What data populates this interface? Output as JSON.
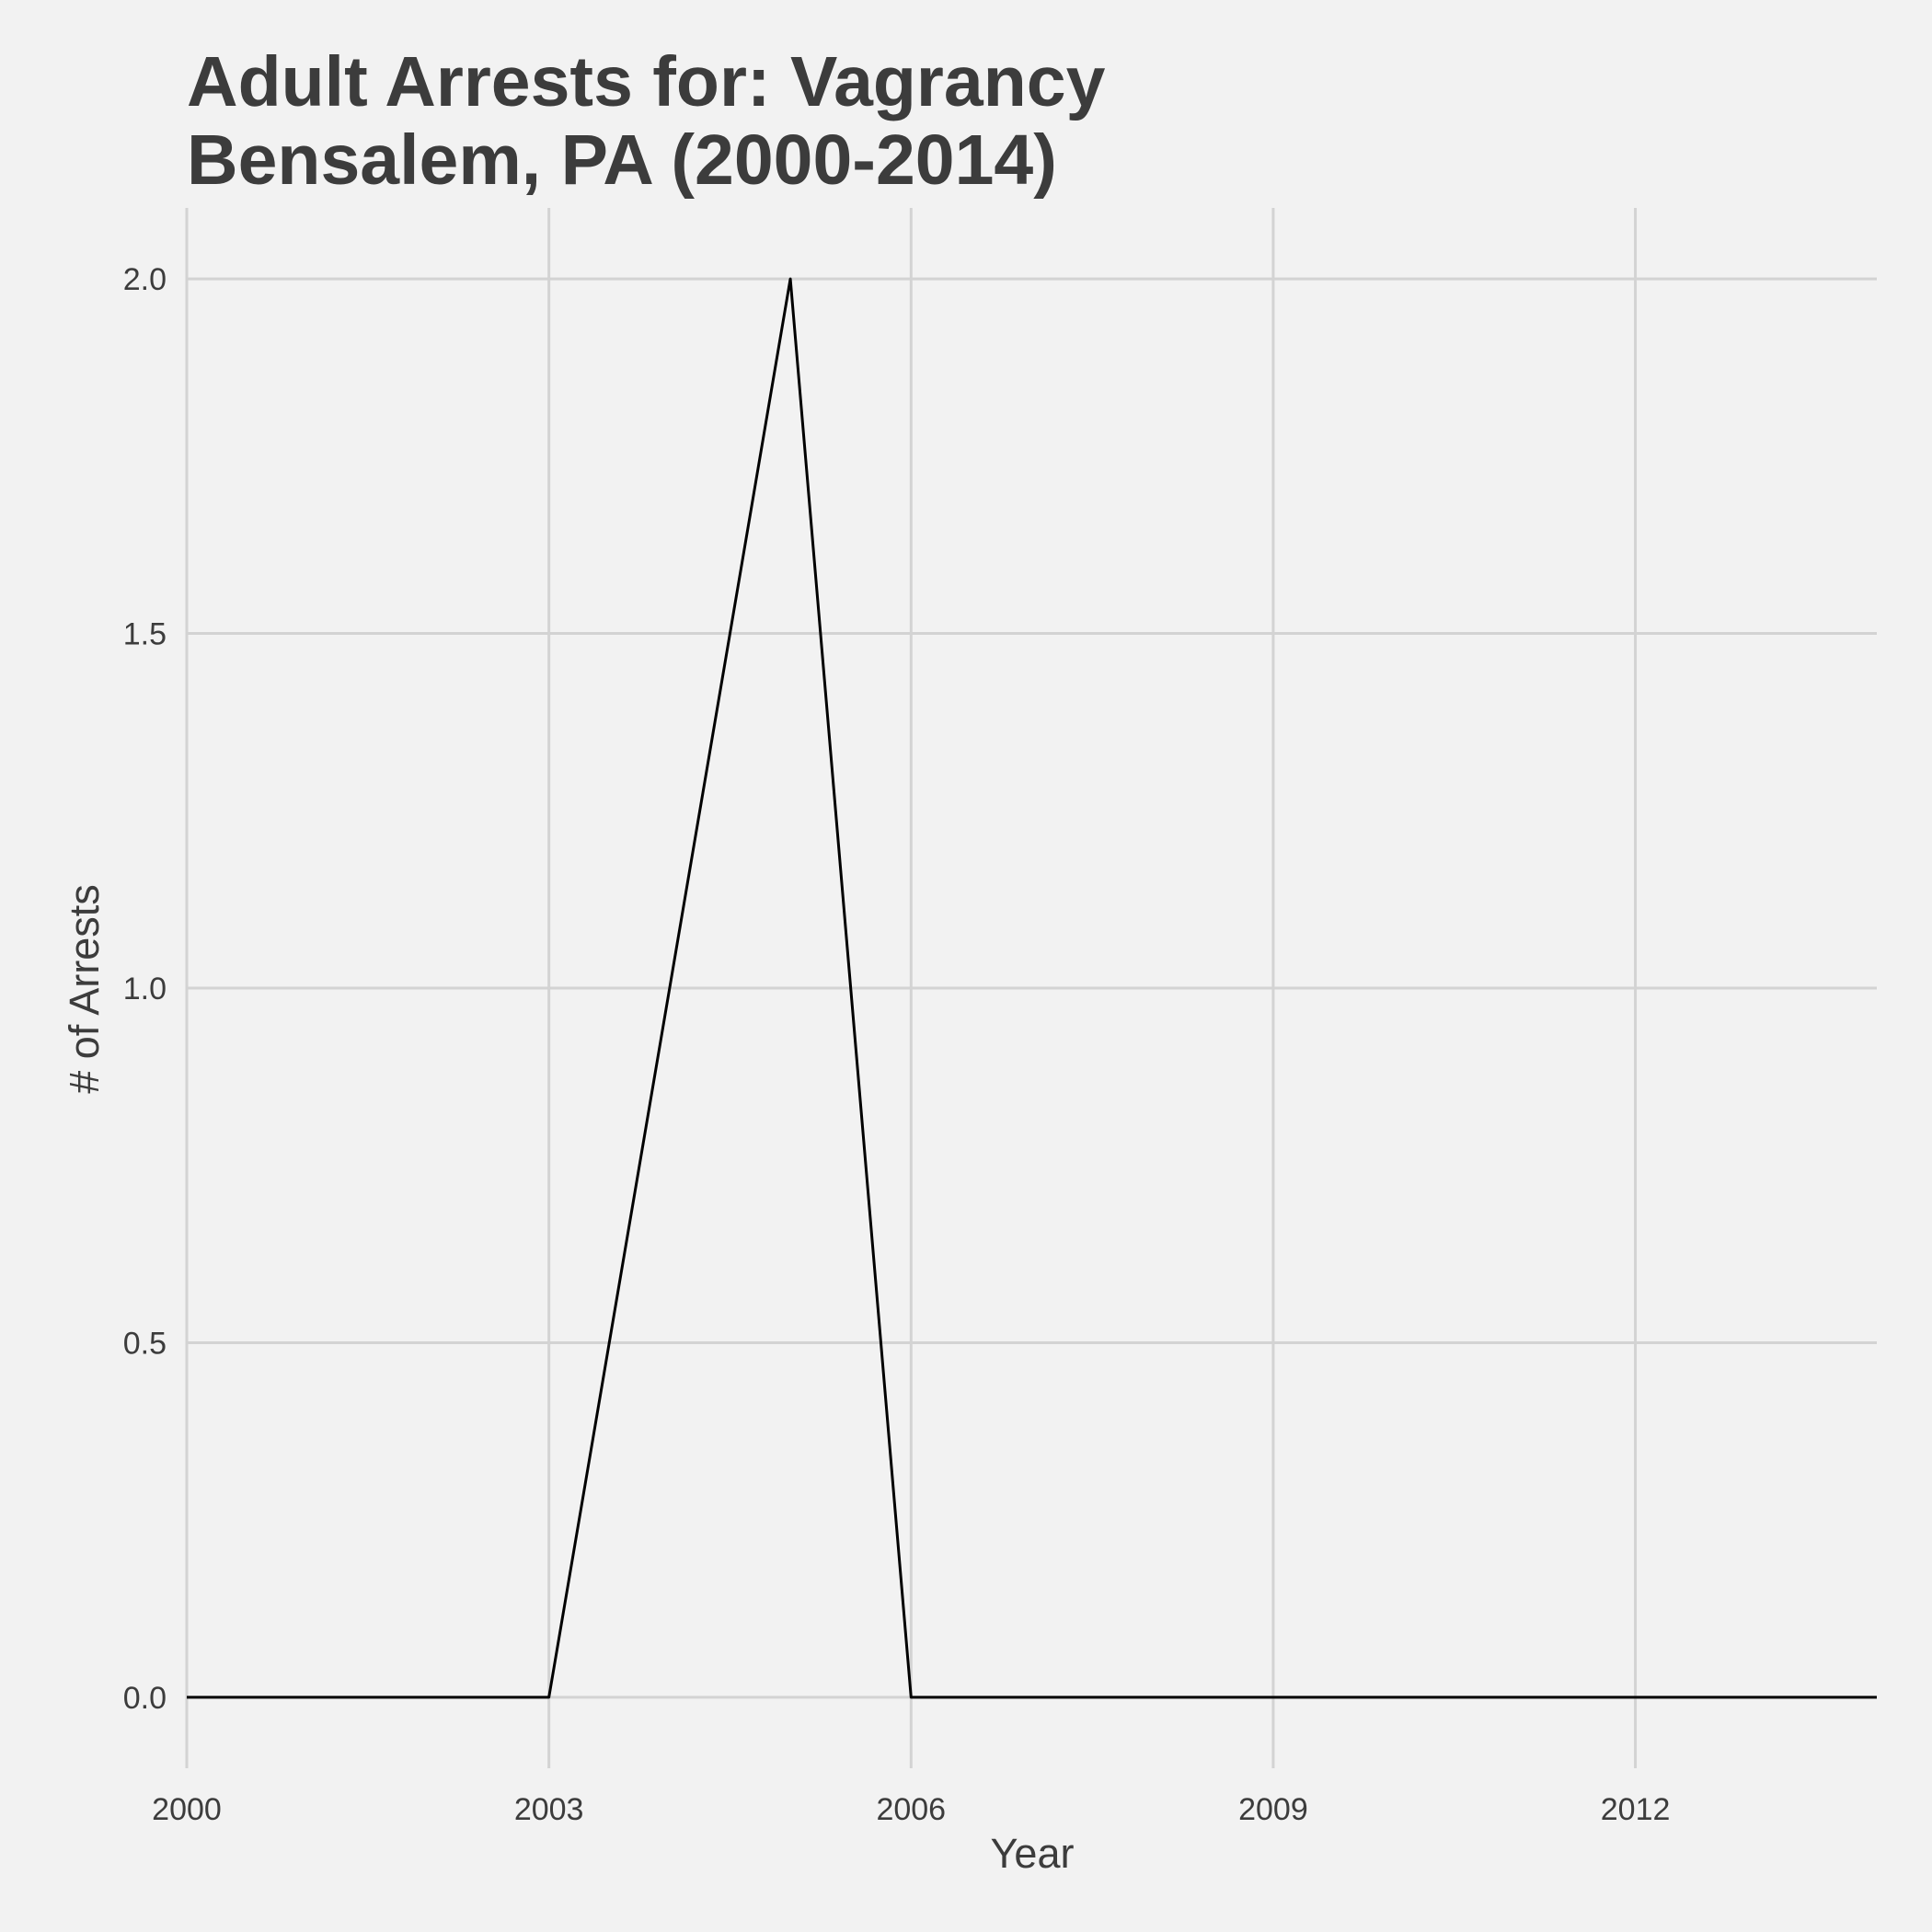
{
  "chart_data": {
    "type": "line",
    "title_lines": [
      "Adult Arrests for: Vagrancy",
      "Bensalem, PA (2000-2014)"
    ],
    "xlabel": "Year",
    "ylabel": "# of Arrests",
    "x": [
      2000,
      2001,
      2002,
      2003,
      2004,
      2005,
      2006,
      2007,
      2008,
      2009,
      2010,
      2011,
      2012,
      2013,
      2014
    ],
    "series": [
      {
        "values": [
          0,
          0,
          0,
          0,
          1,
          2,
          0,
          0,
          0,
          0,
          0,
          0,
          0,
          0,
          0
        ],
        "color": "#000000"
      }
    ],
    "xlim": [
      2000,
      2014
    ],
    "ylim": [
      -0.1,
      2.1
    ],
    "x_ticks": [
      2000,
      2003,
      2006,
      2009,
      2012
    ],
    "x_tick_labels": [
      "2000",
      "2003",
      "2006",
      "2009",
      "2012"
    ],
    "y_ticks": [
      0,
      0.5,
      1,
      1.5,
      2
    ],
    "y_tick_labels": [
      "0.0",
      "0.5",
      "1.0",
      "1.5",
      "2.0"
    ],
    "grid": true,
    "legend": "none",
    "colors": {
      "background": "#f2f2f2",
      "grid": "#d3d3d3",
      "text": "#3c3c3c"
    }
  }
}
